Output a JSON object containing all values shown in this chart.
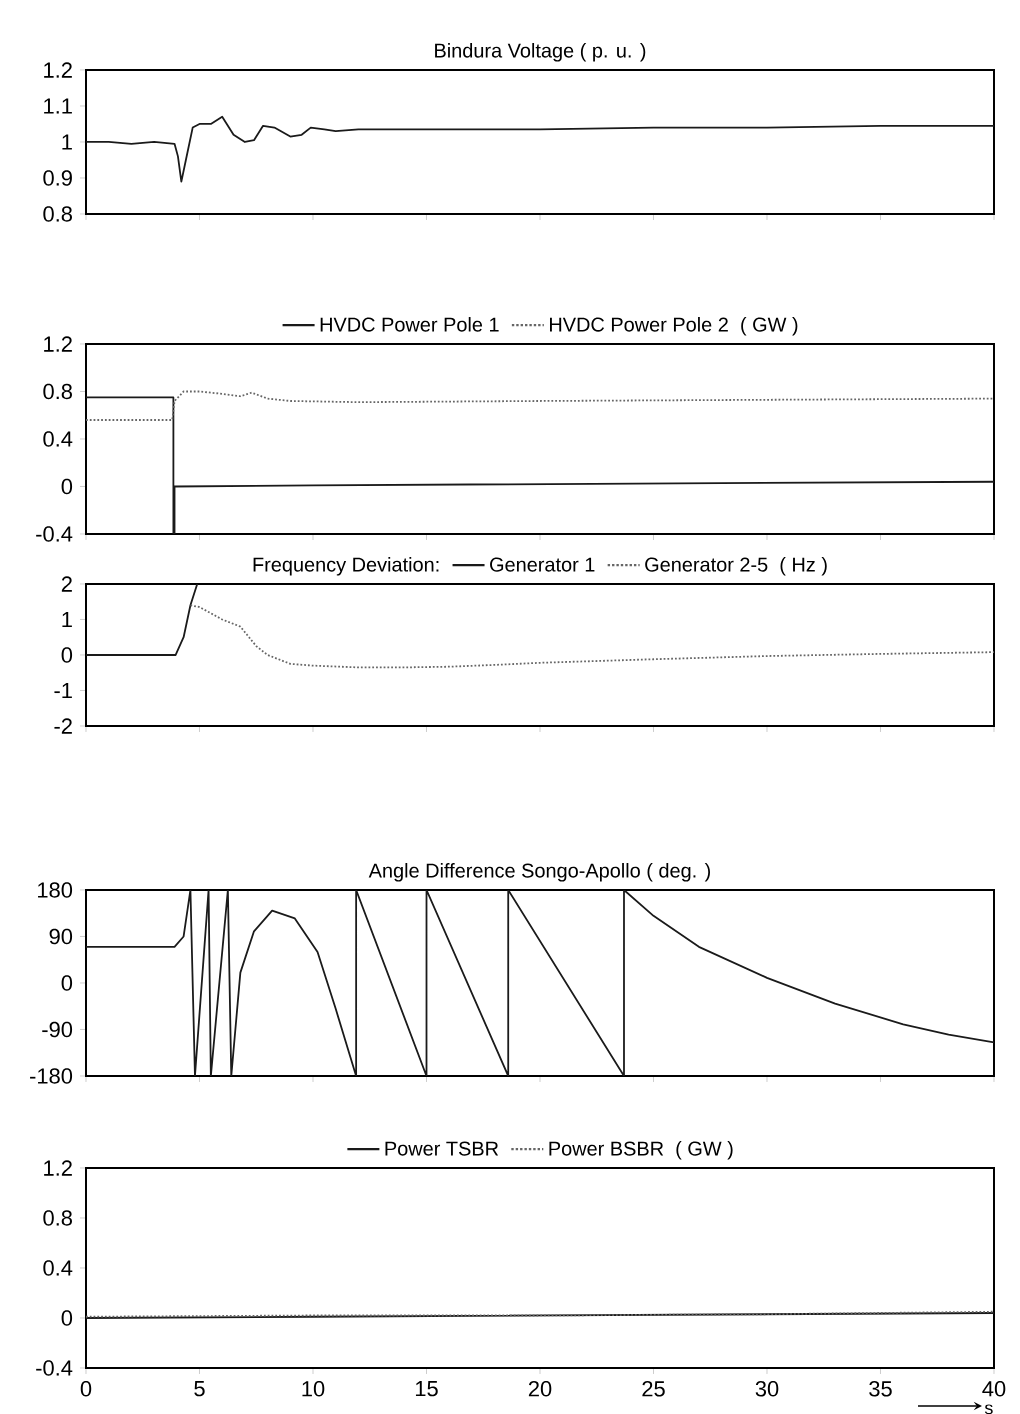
{
  "chart_data": [
    {
      "type": "line",
      "title": "Bindura Voltage ( p. u. )",
      "xlim": [
        0,
        40
      ],
      "xticks": [
        0,
        5,
        10,
        15,
        20,
        25,
        30,
        35,
        40
      ],
      "ylim": [
        0.8,
        1.2
      ],
      "yticks": [
        0.8,
        0.9,
        1,
        1.1,
        1.2
      ],
      "tick_labels": "y",
      "marker": "none",
      "series": [
        {
          "color": "#1a1a1a",
          "line_style": "solid",
          "x": [
            0,
            1,
            2,
            3,
            3.9,
            4.05,
            4.2,
            4.4,
            4.7,
            5.0,
            5.5,
            6.0,
            6.5,
            7.0,
            7.4,
            7.8,
            8.3,
            9.0,
            9.5,
            9.9,
            10.5,
            11,
            12,
            15,
            20,
            25,
            30,
            35,
            40
          ],
          "values": [
            1.0,
            1.0,
            0.995,
            1.0,
            0.995,
            0.96,
            0.89,
            0.95,
            1.04,
            1.05,
            1.05,
            1.07,
            1.02,
            1.0,
            1.005,
            1.045,
            1.04,
            1.015,
            1.02,
            1.04,
            1.035,
            1.03,
            1.035,
            1.035,
            1.035,
            1.04,
            1.04,
            1.045,
            1.045
          ]
        }
      ]
    },
    {
      "type": "line",
      "ylabel": "( GW )",
      "xlim": [
        0,
        40
      ],
      "xticks": [
        0,
        5,
        10,
        15,
        20,
        25,
        30,
        35,
        40
      ],
      "ylim": [
        -0.4,
        1.2
      ],
      "yticks": [
        -0.4,
        0,
        0.4,
        0.8,
        1.2
      ],
      "tick_labels": "y",
      "legend": "top",
      "marker": "none",
      "series": [
        {
          "name": "HVDC Power Pole 1",
          "color": "#1a1a1a",
          "line_style": "solid",
          "x": [
            0,
            3.85,
            3.85,
            3.9,
            3.9,
            10,
            20,
            30,
            40
          ],
          "values": [
            0.75,
            0.75,
            -0.4,
            -0.4,
            0.0,
            0.01,
            0.02,
            0.03,
            0.04
          ]
        },
        {
          "name": "HVDC Power Pole 2",
          "color": "#666666",
          "line_style": "dotted",
          "x": [
            0,
            3.8,
            3.9,
            4.3,
            5,
            6,
            6.8,
            7.3,
            8,
            9,
            12,
            20,
            30,
            40
          ],
          "values": [
            0.56,
            0.56,
            0.72,
            0.8,
            0.8,
            0.78,
            0.76,
            0.79,
            0.74,
            0.72,
            0.71,
            0.72,
            0.73,
            0.74
          ]
        }
      ]
    },
    {
      "type": "line",
      "title": "Frequency Deviation:",
      "ylabel": "( Hz )",
      "xlim": [
        0,
        40
      ],
      "xticks": [
        0,
        5,
        10,
        15,
        20,
        25,
        30,
        35,
        40
      ],
      "ylim": [
        -2,
        2
      ],
      "yticks": [
        -2,
        -1,
        0,
        1,
        2
      ],
      "tick_labels": "y",
      "legend": "top",
      "marker": "none",
      "series": [
        {
          "name": "Generator 1",
          "color": "#1a1a1a",
          "line_style": "solid",
          "x": [
            0,
            3.95,
            4.3,
            4.6,
            4.9
          ],
          "values": [
            0,
            0,
            0.5,
            1.4,
            2
          ]
        },
        {
          "name": "Generator 2-5",
          "color": "#666666",
          "line_style": "dotted",
          "x": [
            4.6,
            5.0,
            6.0,
            6.8,
            7.5,
            8.0,
            9.0,
            10,
            12,
            14,
            16,
            18,
            20,
            25,
            30,
            35,
            40
          ],
          "values": [
            1.4,
            1.35,
            1.0,
            0.8,
            0.25,
            0.0,
            -0.25,
            -0.3,
            -0.35,
            -0.35,
            -0.33,
            -0.28,
            -0.22,
            -0.12,
            -0.03,
            0.03,
            0.08
          ]
        }
      ]
    },
    {
      "type": "line",
      "title": "Angle Difference Songo-Apollo ( deg. )",
      "xlim": [
        0,
        40
      ],
      "xticks": [
        0,
        5,
        10,
        15,
        20,
        25,
        30,
        35,
        40
      ],
      "ylim": [
        -180,
        180
      ],
      "yticks": [
        -180,
        -90,
        0,
        90,
        180
      ],
      "tick_labels": "y",
      "marker": "none",
      "series": [
        {
          "color": "#1a1a1a",
          "line_style": "solid",
          "x": [
            0,
            3.9,
            4.3,
            4.6,
            4.8,
            5.4,
            5.5,
            6.25,
            6.4,
            6.8,
            7.4,
            8.2,
            9.2,
            10.2,
            11,
            11.9,
            11.9,
            15,
            15,
            18.6,
            18.6,
            23.7,
            23.7,
            25,
            27,
            30,
            33,
            36,
            38,
            40
          ],
          "values": [
            70,
            70,
            90,
            180,
            -180,
            180,
            -180,
            180,
            -180,
            20,
            100,
            140,
            125,
            60,
            -50,
            -180,
            180,
            -180,
            180,
            -180,
            180,
            -180,
            180,
            130,
            70,
            10,
            -40,
            -80,
            -100,
            -115
          ]
        }
      ]
    },
    {
      "type": "line",
      "ylabel": "( GW )",
      "xlabel": "s",
      "xlim": [
        0,
        40
      ],
      "xticks": [
        0,
        5,
        10,
        15,
        20,
        25,
        30,
        35,
        40
      ],
      "ylim": [
        -0.4,
        1.2
      ],
      "yticks": [
        -0.4,
        0,
        0.4,
        0.8,
        1.2
      ],
      "legend": "top",
      "marker": "none",
      "series": [
        {
          "name": "Power TSBR",
          "color": "#1a1a1a",
          "line_style": "solid",
          "x": [
            0,
            10,
            20,
            30,
            40
          ],
          "values": [
            0,
            0.01,
            0.02,
            0.03,
            0.04
          ]
        },
        {
          "name": "Power BSBR",
          "color": "#666666",
          "line_style": "dotted",
          "x": [
            0,
            10,
            20,
            30,
            40
          ],
          "values": [
            0.01,
            0.02,
            0.02,
            0.03,
            0.05
          ]
        }
      ]
    }
  ]
}
